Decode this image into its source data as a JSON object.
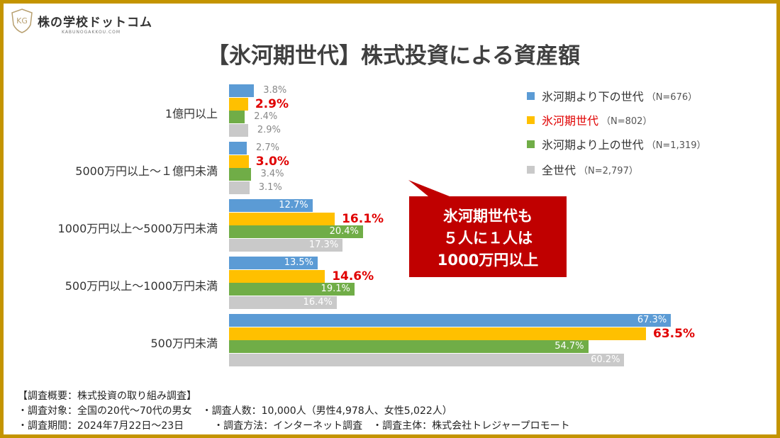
{
  "logo": {
    "name": "株の学校ドットコム",
    "sub": "KABUNOGAKKOU.COM"
  },
  "chart_data": {
    "type": "bar",
    "orientation": "horizontal",
    "title": "【氷河期世代】株式投資による資産額",
    "categories": [
      "1億円以上",
      "5000万円以上～１億円未満",
      "1000万円以上～5000万円未満",
      "500万円以上～1000万円未満",
      "500万円未満"
    ],
    "series": [
      {
        "name": "氷河期より下の世代",
        "n": "（N=676）",
        "color": "#5b9bd5",
        "values": [
          3.8,
          2.7,
          12.7,
          13.5,
          67.3
        ]
      },
      {
        "name": "氷河期世代",
        "n": "（N=802）",
        "color": "#ffc000",
        "values": [
          2.9,
          3.0,
          16.1,
          14.6,
          63.5
        ],
        "highlight": true
      },
      {
        "name": "氷河期より上の世代",
        "n": "（N=1,319）",
        "color": "#70ad47",
        "values": [
          2.4,
          3.4,
          20.4,
          19.1,
          54.7
        ]
      },
      {
        "name": "全世代",
        "n": "（N=2,797）",
        "color": "#c9c9c9",
        "values": [
          2.9,
          3.1,
          17.3,
          16.4,
          60.2
        ]
      }
    ],
    "unit": "%",
    "legend": "top-right",
    "grid": false
  },
  "callout": {
    "lines": [
      "氷河期世代も",
      "５人に１人は",
      "1000万円以上"
    ],
    "color": "#c00000"
  },
  "notes": [
    "【調査概要：株式投資の取り組み調査】",
    "・調査対象：全国の20代～70代の男女　・調査人数：10,000人（男性4,978人、女性5,022人）",
    "・調査期間：2024年7月22日～23日　　　・調査方法：インターネット調査　・調査主体：株式会社トレジャープロモート"
  ]
}
